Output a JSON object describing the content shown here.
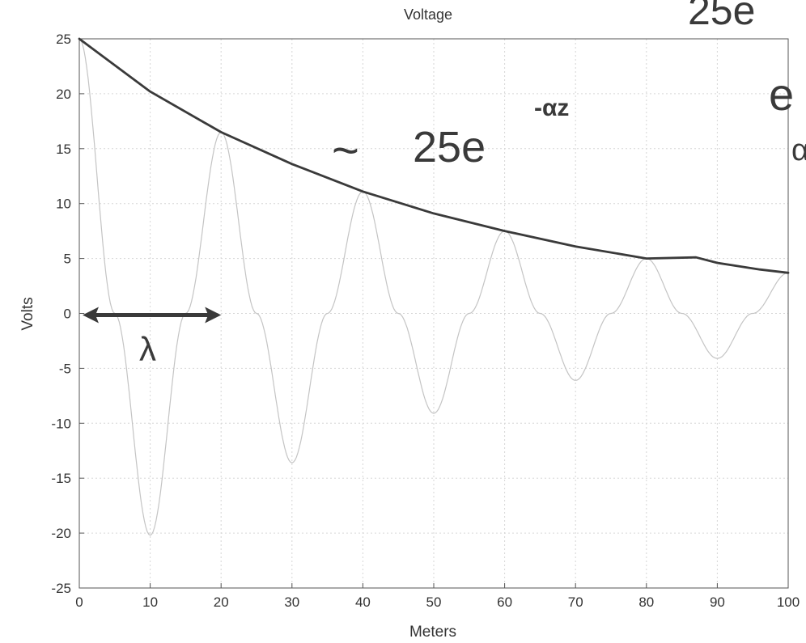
{
  "chart_data": {
    "type": "line",
    "title": "Voltage",
    "xlabel": "Meters",
    "ylabel": "Volts",
    "xlim": [
      0,
      100
    ],
    "ylim": [
      -25,
      25
    ],
    "x_ticks": [
      0,
      10,
      20,
      30,
      40,
      50,
      60,
      70,
      80,
      90,
      100
    ],
    "y_ticks": [
      25,
      20,
      15,
      10,
      5,
      0,
      -5,
      -10,
      -15,
      -20,
      -25
    ],
    "grid": true,
    "series": [
      {
        "name": "",
        "style": "thin light gray line",
        "x": [
          0,
          5,
          10,
          15,
          20,
          25,
          30,
          35,
          40,
          45,
          50,
          55,
          60,
          65,
          70,
          75,
          80,
          85,
          90,
          95,
          100
        ],
        "y": [
          25,
          0,
          -20.2,
          0,
          16.5,
          0,
          -13.6,
          0,
          11.1,
          0,
          -9.1,
          0,
          7.5,
          0,
          -6.1,
          0,
          5,
          0,
          -4.1,
          0,
          3.7
        ]
      }
    ],
    "annotations": {
      "envelope": {
        "label_prefix": "~",
        "label_main": "25e",
        "label_exponent": "-αz",
        "x": [
          0,
          10,
          20,
          30,
          40,
          50,
          60,
          70,
          80,
          87,
          90,
          93,
          96,
          100
        ],
        "y": [
          25,
          20.2,
          16.5,
          13.6,
          11.1,
          9.1,
          7.5,
          6.1,
          5.0,
          5.1,
          4.6,
          4.3,
          4.0,
          3.7
        ]
      },
      "wavelength": {
        "label": "λ",
        "from_x": 0,
        "to_x": 20,
        "y": 0
      },
      "margin_scribbles": [
        "25e",
        "e",
        "α"
      ]
    },
    "colors": {
      "wave": "#c4c4c4",
      "envelope": "#4a4a4a",
      "ink": "#3a3a3a",
      "grid": "#d6d6d6",
      "axis": "#555555"
    }
  }
}
